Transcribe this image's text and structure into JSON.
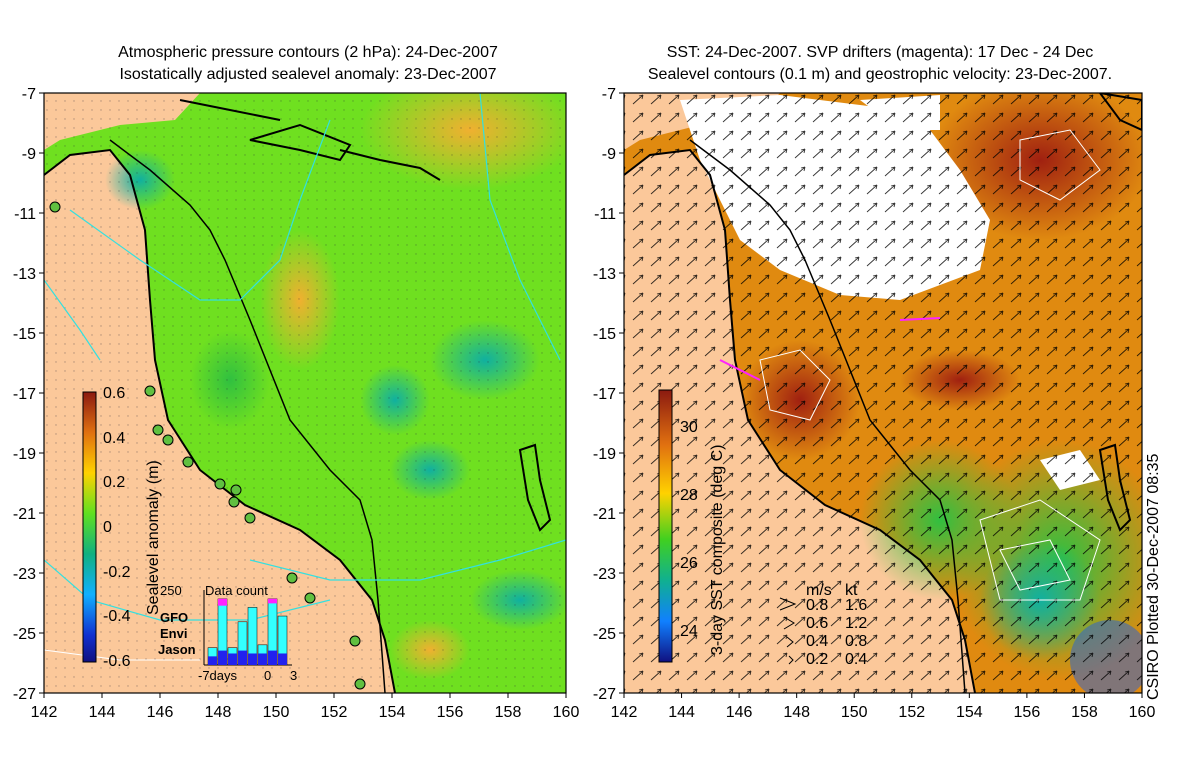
{
  "left_panel": {
    "title_line1": "Atmospheric pressure contours (2 hPa): 24-Dec-2007",
    "title_line2": "Isostatically adjusted sealevel anomaly: 23-Dec-2007",
    "colorbar_label": "Sealevel anomaly (m)",
    "colorbar_ticks": [
      "0.6",
      "0.4",
      "0.2",
      "0",
      "-0.2",
      "-0.4",
      "-0.6"
    ],
    "inset": {
      "title": "Data count",
      "ymax_label": "250",
      "xaxis_labels": [
        "-7days",
        "0",
        "3"
      ],
      "legend": [
        {
          "label": "GFO",
          "color": "#ff22ff"
        },
        {
          "label": "Envi",
          "color": "#33ffff"
        },
        {
          "label": "Jason",
          "color": "#2222ee"
        }
      ],
      "bars_total": [
        60,
        230,
        60,
        150,
        200,
        70,
        230,
        170
      ],
      "bars_jason": [
        30,
        50,
        40,
        50,
        40,
        40,
        50,
        40
      ],
      "bars_gfo": [
        0,
        60,
        0,
        0,
        0,
        0,
        40,
        0
      ]
    }
  },
  "right_panel": {
    "title_line1": "SST: 24-Dec-2007. SVP drifters (magenta): 17 Dec - 24 Dec",
    "title_line2": "Sealevel contours (0.1 m) and geostrophic velocity: 23-Dec-2007.",
    "colorbar_label": "3-day SST composite (deg C)",
    "colorbar_ticks": [
      "30",
      "28",
      "26",
      "24"
    ],
    "velocity_legend": {
      "header_ms": "m/s",
      "header_kt": "kt",
      "rows": [
        {
          "ms": "0.8",
          "kt": "1.6"
        },
        {
          "ms": "0.6",
          "kt": "1.2"
        },
        {
          "ms": "0.4",
          "kt": "0.8"
        },
        {
          "ms": "0.2",
          "kt": "0.4"
        }
      ]
    }
  },
  "axes": {
    "lat_ticks": [
      "-7",
      "-9",
      "-11",
      "-13",
      "-15",
      "-17",
      "-19",
      "-21",
      "-23",
      "-25",
      "-27"
    ],
    "lon_ticks": [
      "142",
      "144",
      "146",
      "148",
      "150",
      "152",
      "154",
      "156",
      "158",
      "160"
    ]
  },
  "credit": "CSIRO Plotted 30-Dec-2007 08:35",
  "colors": {
    "land": "#fbc89a",
    "sla_green": "#6fe020",
    "sst_orange": "#e08a10"
  }
}
